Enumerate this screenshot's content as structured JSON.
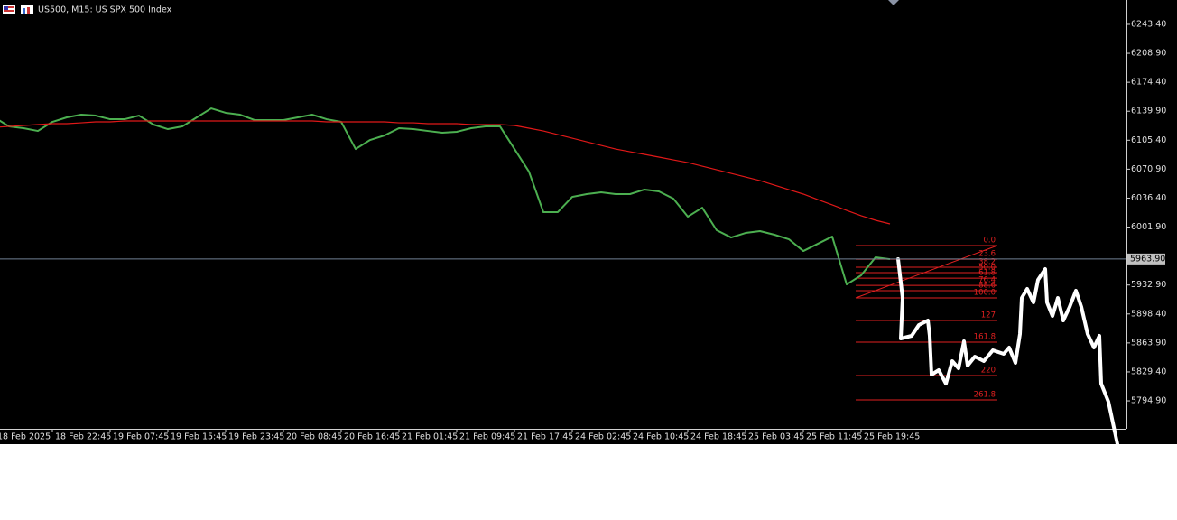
{
  "chart_data": {
    "type": "line",
    "title": "US500, M15:  US SPX 500 Index",
    "categories": [
      "18 Feb 2025",
      null,
      null,
      null,
      "18 Feb 22:45",
      null,
      null,
      null,
      "19 Feb 07:45",
      null,
      null,
      null,
      "19 Feb 15:45",
      null,
      null,
      null,
      "19 Feb 23:45",
      null,
      null,
      null,
      "20 Feb 08:45",
      null,
      null,
      null,
      "20 Feb 16:45",
      null,
      null,
      null,
      "21 Feb 01:45",
      null,
      null,
      null,
      "21 Feb 09:45",
      null,
      null,
      null,
      "21 Feb 17:45",
      null,
      null,
      null,
      "24 Feb 02:45",
      null,
      null,
      null,
      "24 Feb 10:45",
      null,
      null,
      null,
      "24 Feb 18:45",
      null,
      null,
      null,
      "25 Feb 03:45",
      null,
      null,
      null,
      "25 Feb 11:45",
      null,
      null,
      null,
      "25 Feb 19:45",
      null,
      null
    ],
    "series": [
      {
        "color": "#4caf50",
        "values": [
          6132.6,
          6121.8,
          6119.7,
          6116.4,
          6127.2,
          6132.6,
          6135.8,
          6134.7,
          6130.4,
          6130.4,
          6134.7,
          6124.0,
          6118.6,
          6121.8,
          6132.6,
          6143.3,
          6138.0,
          6135.8,
          6129.4,
          6129.4,
          6129.4,
          6132.6,
          6135.8,
          6130.4,
          6127.2,
          6094.9,
          6105.7,
          6111.1,
          6119.7,
          6118.6,
          6116.4,
          6114.3,
          6115.4,
          6119.7,
          6121.8,
          6121.8,
          6094.9,
          6068.0,
          6019.7,
          6019.7,
          6037.9,
          6041.2,
          6043.3,
          6041.2,
          6041.2,
          6046.6,
          6044.4,
          6035.8,
          6014.3,
          6025.0,
          5998.2,
          5989.5,
          5994.9,
          5997.1,
          5992.8,
          5987.4,
          5973.4,
          5982.0,
          5990.6,
          5933.6,
          5944.4,
          5965.9,
          5963.7
        ]
      },
      {
        "color": "#e01818",
        "values": [
          6120.7,
          6121.8,
          6122.9,
          6124.0,
          6125.1,
          6125.1,
          6126.1,
          6127.2,
          6127.2,
          6128.3,
          6128.3,
          6128.3,
          6128.3,
          6128.3,
          6128.3,
          6128.3,
          6128.3,
          6128.3,
          6128.3,
          6128.3,
          6128.3,
          6128.3,
          6128.3,
          6127.2,
          6127.2,
          6127.2,
          6127.2,
          6127.2,
          6126.1,
          6126.1,
          6125.1,
          6125.1,
          6125.1,
          6124.0,
          6124.0,
          6124.0,
          6122.9,
          6119.7,
          6116.4,
          6112.1,
          6107.8,
          6103.5,
          6099.2,
          6094.9,
          6091.7,
          6088.5,
          6085.3,
          6082.0,
          6078.8,
          6074.5,
          6070.2,
          6065.9,
          6061.6,
          6057.3,
          6051.9,
          6046.5,
          6041.2,
          6034.7,
          6028.3,
          6021.8,
          6015.4,
          6010.0,
          6005.7
        ]
      }
    ],
    "ylim": [
      5761.6,
      6272.4
    ],
    "yticks": [
      {
        "value": 6243.4,
        "label": "6243.40"
      },
      {
        "value": 6208.9,
        "label": "6208.90"
      },
      {
        "value": 6174.4,
        "label": "6174.40"
      },
      {
        "value": 6139.9,
        "label": "6139.90"
      },
      {
        "value": 6105.4,
        "label": "6105.40"
      },
      {
        "value": 6070.9,
        "label": "6070.90"
      },
      {
        "value": 6036.4,
        "label": "6036.40"
      },
      {
        "value": 6001.9,
        "label": "6001.90"
      },
      {
        "value": 5932.9,
        "label": "5932.90"
      },
      {
        "value": 5898.4,
        "label": "5898.40"
      },
      {
        "value": 5863.9,
        "label": "5863.90"
      },
      {
        "value": 5829.4,
        "label": "5829.40"
      },
      {
        "value": 5794.9,
        "label": "5794.90"
      }
    ],
    "current_price": {
      "value": 5963.9,
      "label": "5963.90"
    },
    "fibonacci": {
      "color": "#e02020",
      "levels": [
        {
          "label": "0.0",
          "value": 5979.9
        },
        {
          "label": "23.6",
          "value": 5963.7
        },
        {
          "label": "38.2",
          "value": 5954.1
        },
        {
          "label": "50.0",
          "value": 5947.6
        },
        {
          "label": "61.8",
          "value": 5941.1
        },
        {
          "label": "76.4",
          "value": 5932.5
        },
        {
          "label": "88.6",
          "value": 5926.1
        },
        {
          "label": "100.0",
          "value": 5917.5
        },
        {
          "label": "127",
          "value": 5890.6
        },
        {
          "label": "161.8",
          "value": 5864.8
        },
        {
          "label": "220",
          "value": 5825.0
        },
        {
          "label": "261.8",
          "value": 5796.0
        }
      ]
    },
    "grid": false
  }
}
